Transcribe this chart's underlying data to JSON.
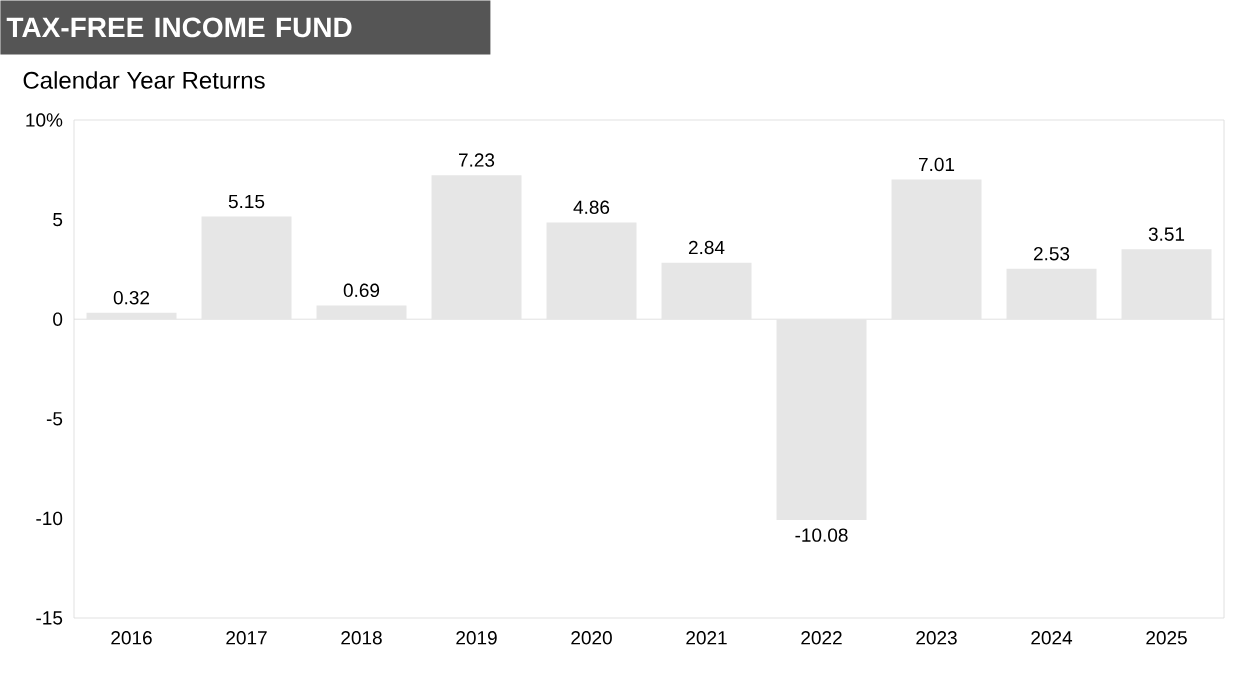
{
  "chart_data": {
    "type": "bar",
    "title": "TAX-FREE INCOME FUND",
    "subtitle": "Calendar Year Returns",
    "categories": [
      "2016",
      "2017",
      "2018",
      "2019",
      "2020",
      "2021",
      "2022",
      "2023",
      "2024",
      "2025"
    ],
    "values": [
      0.32,
      5.15,
      0.69,
      7.23,
      4.86,
      2.84,
      -10.08,
      7.01,
      2.53,
      3.51
    ],
    "value_labels": [
      "0.32",
      "5.15",
      "0.69",
      "7.23",
      "4.86",
      "2.84",
      "-10.08",
      "7.01",
      "2.53",
      "3.51"
    ],
    "color": "#e6e6e6",
    "ylim": [
      -15,
      10
    ],
    "yticks": [
      -15,
      -10,
      -5,
      0,
      5,
      {
        "value": 10,
        "label": "10%"
      }
    ],
    "ref_lines": [
      {
        "axis": "y",
        "value": 0,
        "color": "#d9d9d9"
      }
    ],
    "grid": false
  }
}
